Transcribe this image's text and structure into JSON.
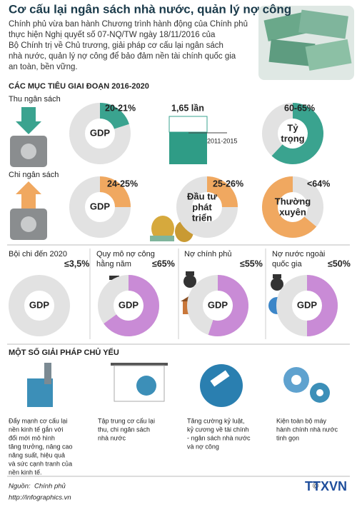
{
  "header": {
    "title": "Cơ cấu lại ngân sách nhà nước, quản lý nợ công",
    "lines": [
      "Chính phủ vừa ban hành Chương trình hành động của Chính phủ",
      "thực hiện Nghị quyết số 07-NQ/TW ngày 18/11/2016 của",
      "Bộ Chính trị về Chủ trương, giải pháp cơ cấu lại ngân sách",
      "nhà nước, quản lý nợ công để bảo đảm nền tài chính quốc gia",
      " an toàn, bền vững."
    ]
  },
  "targets": {
    "heading": "CÁC MỤC TIÊU GIAI ĐOẠN 2016-2020",
    "revenue": {
      "label": "Thu ngân sách",
      "gdp_share": "20-21%",
      "gdp": "GDP",
      "growth": "1,65 lần",
      "period": "2011-2015",
      "weight": "60-65%",
      "weight_center": [
        "Tỷ",
        "trọng"
      ]
    },
    "spending": {
      "label": "Chi ngân sách",
      "gdp_share": "24-25%",
      "gdp": "GDP",
      "invest": "25-26%",
      "invest_center": [
        "Đầu tư",
        "phát",
        "triển"
      ],
      "regular": "<64%",
      "regular_center": [
        "Thường",
        "xuyên"
      ]
    },
    "limits": [
      {
        "label": [
          "Bội chi đến 2020"
        ],
        "value": "≤3,5%",
        "center": "GDP"
      },
      {
        "label": [
          "Quy mô nợ công",
          "hằng năm"
        ],
        "value": "≤65%",
        "center": "GDP"
      },
      {
        "label": [
          "Nợ chính phủ"
        ],
        "value": "≤55%",
        "center": "GDP"
      },
      {
        "label": [
          "Nợ nước ngoài",
          "quốc gia"
        ],
        "value": "≤50%",
        "center": "GDP"
      }
    ]
  },
  "solutions": {
    "heading": "MỘT SỐ GIẢI PHÁP CHỦ YẾU",
    "items": [
      [
        "Đẩy mạnh cơ cấu lại",
        "nền kinh tế gắn với",
        "đổi mới mô hình",
        "tăng trưởng, nâng cao",
        "năng suất, hiệu quả",
        "và sức cạnh tranh của",
        "nền kinh tế."
      ],
      [
        "Tập trung cơ cấu lại",
        "thu, chi ngân sách",
        "nhà nước"
      ],
      [
        "Tăng cường kỷ luật,",
        "kỷ cương về tài chính",
        "- ngân sách nhà nước",
        "và nợ công"
      ],
      [
        "Kiện toàn bộ máy",
        "hành chính nhà nước",
        "tinh gọn"
      ]
    ]
  },
  "footer": {
    "source_label": "Nguồn:",
    "source": "Chính phủ",
    "url": "http://infographics.vn",
    "logo": "TTXVN"
  }
}
